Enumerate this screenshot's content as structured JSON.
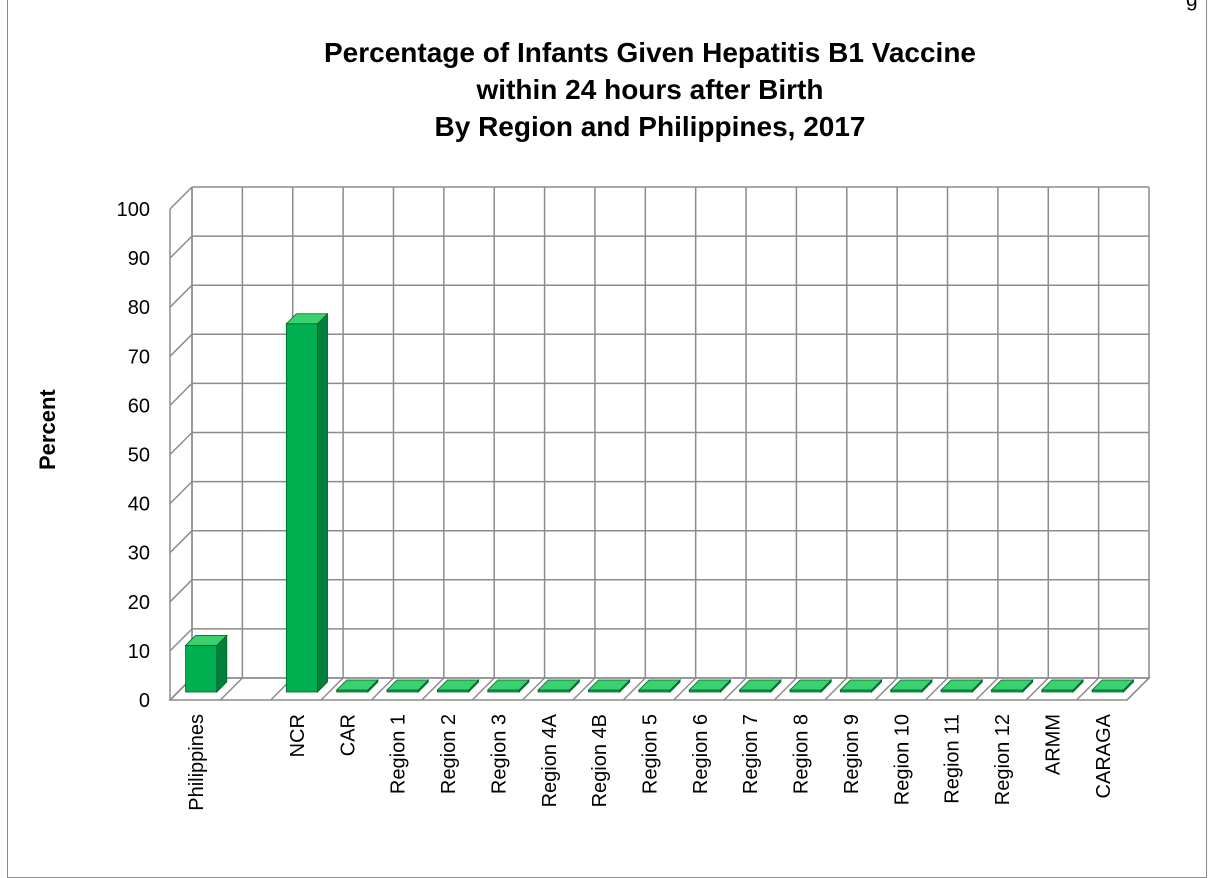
{
  "cropped_text": "g",
  "chart_data": {
    "type": "bar",
    "title_lines": [
      "Percentage of Infants Given Hepatitis B1 Vaccine",
      "within 24 hours after Birth",
      "By Region and Philippines, 2017"
    ],
    "xlabel": "",
    "ylabel": "Percent",
    "ylim": [
      0,
      100
    ],
    "yticks": [
      "0",
      "10",
      "20",
      "30",
      "40",
      "50",
      "60",
      "70",
      "80",
      "90",
      "100"
    ],
    "grid": true,
    "categories": [
      "Philippines",
      "",
      "NCR",
      "CAR",
      "Region 1",
      "Region 2",
      "Region 3",
      "Region 4A",
      "Region 4B",
      "Region 5",
      "Region 6",
      "Region 7",
      "Region 8",
      "Region 9",
      "Region 10",
      "Region 11",
      "Region 12",
      "ARMM",
      "CARAGA"
    ],
    "values": [
      9.5,
      null,
      75,
      0,
      0,
      0,
      0,
      0,
      0,
      0,
      0,
      0,
      0,
      0,
      0,
      0,
      0,
      0,
      0
    ],
    "bar_color": "#00b050",
    "bar_dark_color": "#00803a",
    "bar_top_color": "#3ad16f"
  }
}
